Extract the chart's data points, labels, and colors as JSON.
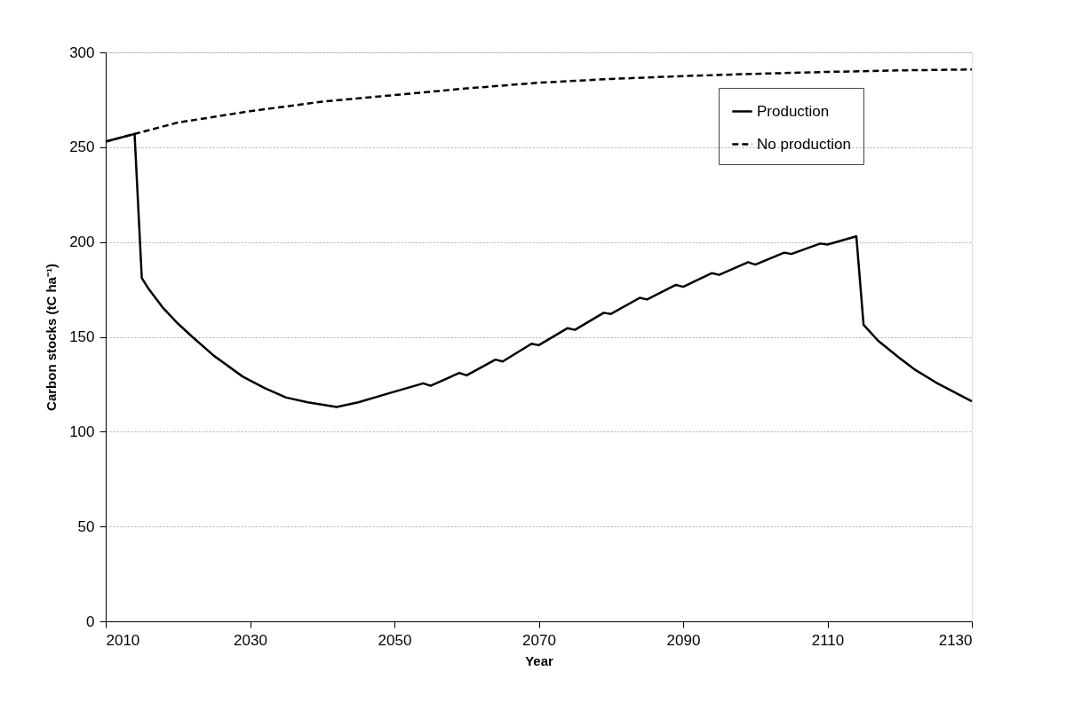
{
  "chart_data": {
    "type": "line",
    "xlabel": "Year",
    "ylabel": "Carbon stocks (tC ha⁻¹)",
    "xlim": [
      2010,
      2130
    ],
    "xticks": [
      2010,
      2030,
      2050,
      2070,
      2090,
      2110,
      2130
    ],
    "ylim": [
      0,
      300
    ],
    "yticks": [
      0,
      50,
      100,
      150,
      200,
      250,
      300
    ],
    "grid": "y",
    "legend": "top right",
    "marker": "none",
    "series": [
      {
        "name": "Production",
        "color": "#000000",
        "line_style": "solid",
        "x": [
          2010,
          2014,
          2015,
          2016,
          2018,
          2020,
          2022,
          2025,
          2029,
          2032,
          2035,
          2038,
          2042,
          2045,
          2049,
          2054,
          2055,
          2059,
          2060,
          2064,
          2065,
          2069,
          2070,
          2074,
          2075,
          2079,
          2080,
          2084,
          2085,
          2089,
          2090,
          2094,
          2095,
          2099,
          2100,
          2104,
          2105,
          2109,
          2110,
          2114,
          2115,
          2117,
          2120,
          2122,
          2125,
          2130
        ],
        "values": [
          253,
          257,
          181,
          175,
          165,
          157,
          150,
          140,
          129,
          123,
          118,
          115.5,
          113,
          115.5,
          120,
          125.5,
          124.2,
          131,
          129.7,
          138,
          137,
          146.4,
          145.6,
          154.6,
          153.7,
          162.7,
          162.1,
          170.6,
          169.7,
          177.4,
          176.4,
          183.6,
          182.7,
          189.4,
          188.1,
          194.4,
          193.7,
          199.2,
          198.7,
          203,
          156.4,
          148,
          138.8,
          133,
          126,
          116
        ]
      },
      {
        "name": "No production",
        "color": "#000000",
        "line_style": "dashed",
        "x": [
          2010,
          2014,
          2020,
          2030,
          2040,
          2050,
          2060,
          2070,
          2080,
          2090,
          2100,
          2110,
          2120,
          2130
        ],
        "values": [
          253,
          257,
          263,
          269,
          274,
          277.5,
          281,
          284,
          286,
          287.5,
          288.7,
          289.7,
          290.5,
          291
        ]
      }
    ]
  }
}
